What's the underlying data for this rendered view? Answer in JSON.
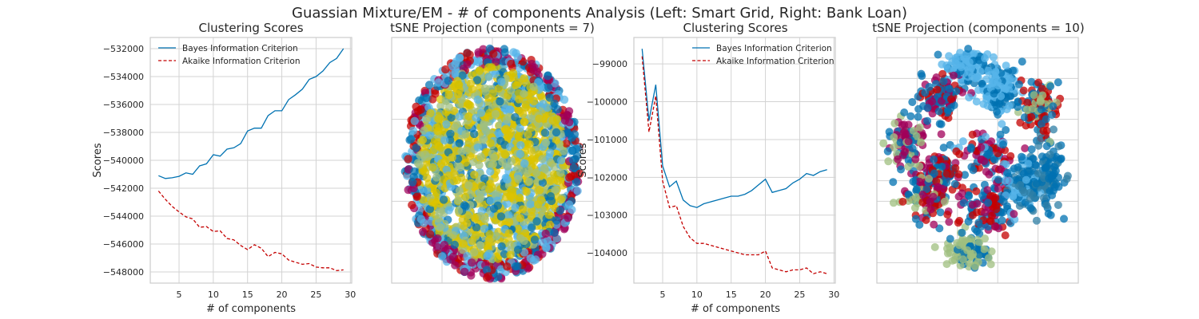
{
  "figure": {
    "suptitle": "Guassian Mixture/EM - # of components Analysis (Left: Smart Grid, Right: Bank Loan)"
  },
  "colors": {
    "bic_line": "#0072b2",
    "aic_line": "#c40000",
    "grid": "#d3d3d3",
    "frame": "#cccccc",
    "cluster_palette": [
      "#0072b2",
      "#009e73",
      "#d55e00",
      "#cc78bc",
      "#f0e442",
      "#56b4e9",
      "#7f7f7f",
      "#b2df8a",
      "#8c564b",
      "#1f1f1f"
    ]
  },
  "chart_data": [
    {
      "panel": "left-scores",
      "type": "line",
      "title": "Clustering Scores",
      "xlabel": "# of components",
      "ylabel": "Scores",
      "xlim": [
        0.8,
        30.2
      ],
      "ylim": [
        -548800,
        -531200
      ],
      "xticks": [
        5,
        10,
        15,
        20,
        25,
        30
      ],
      "yticks": [
        -548000,
        -546000,
        -544000,
        -542000,
        -540000,
        -538000,
        -536000,
        -534000,
        -532000
      ],
      "legend": "top-left",
      "grid": true,
      "x": [
        2,
        3,
        4,
        5,
        6,
        7,
        8,
        9,
        10,
        11,
        12,
        13,
        14,
        15,
        16,
        17,
        18,
        19,
        20,
        21,
        22,
        23,
        24,
        25,
        26,
        27,
        28,
        29
      ],
      "series": [
        {
          "name": "Bayes Information Criterion",
          "style": "solid",
          "values": [
            -541100,
            -541300,
            -541250,
            -541150,
            -540900,
            -541000,
            -540400,
            -540250,
            -539600,
            -539700,
            -539200,
            -539100,
            -538800,
            -537900,
            -537700,
            -537700,
            -536800,
            -536450,
            -536450,
            -535650,
            -535300,
            -534900,
            -534200,
            -534000,
            -533600,
            -533000,
            -532700,
            -532000
          ]
        },
        {
          "name": "Akaike Information Criterion",
          "style": "dashed",
          "values": [
            -542200,
            -542800,
            -543300,
            -543700,
            -544050,
            -544200,
            -544800,
            -544750,
            -545100,
            -545050,
            -545600,
            -545700,
            -546100,
            -546400,
            -546050,
            -546300,
            -546900,
            -546600,
            -546700,
            -547150,
            -547300,
            -547450,
            -547400,
            -547650,
            -547700,
            -547700,
            -547900,
            -547850
          ]
        }
      ]
    },
    {
      "panel": "left-tsne",
      "type": "scatter",
      "title": "tSNE Projection (components = 7)",
      "grid": true,
      "point_count": 2200
    },
    {
      "panel": "right-scores",
      "type": "line",
      "title": "Clustering Scores",
      "xlabel": "# of components",
      "ylabel": "Scores",
      "xlim": [
        0.8,
        30.2
      ],
      "ylim": [
        -104800,
        -98300
      ],
      "xticks": [
        5,
        10,
        15,
        20,
        25,
        30
      ],
      "yticks": [
        -104000,
        -103000,
        -102000,
        -101000,
        -100000,
        -99000
      ],
      "legend": "top-right",
      "grid": true,
      "x": [
        2,
        3,
        4,
        5,
        6,
        7,
        8,
        9,
        10,
        11,
        12,
        13,
        14,
        15,
        16,
        17,
        18,
        19,
        20,
        21,
        22,
        23,
        24,
        25,
        26,
        27,
        28,
        29
      ],
      "series": [
        {
          "name": "Bayes Information Criterion",
          "style": "solid",
          "values": [
            -98600,
            -100500,
            -99550,
            -101700,
            -102250,
            -102100,
            -102600,
            -102750,
            -102800,
            -102700,
            -102650,
            -102600,
            -102550,
            -102500,
            -102500,
            -102450,
            -102350,
            -102200,
            -102050,
            -102400,
            -102350,
            -102300,
            -102150,
            -102050,
            -101900,
            -101950,
            -101850,
            -101800
          ]
        },
        {
          "name": "Akaike Information Criterion",
          "style": "dashed",
          "values": [
            -98800,
            -100800,
            -99850,
            -102100,
            -102800,
            -102750,
            -103300,
            -103600,
            -103750,
            -103750,
            -103800,
            -103850,
            -103900,
            -103950,
            -104000,
            -104050,
            -104050,
            -104050,
            -103950,
            -104400,
            -104450,
            -104500,
            -104450,
            -104450,
            -104400,
            -104550,
            -104500,
            -104550
          ]
        }
      ]
    },
    {
      "panel": "right-tsne",
      "type": "scatter",
      "title": "tSNE Projection (components = 10)",
      "grid": true,
      "point_count": 1300
    }
  ]
}
